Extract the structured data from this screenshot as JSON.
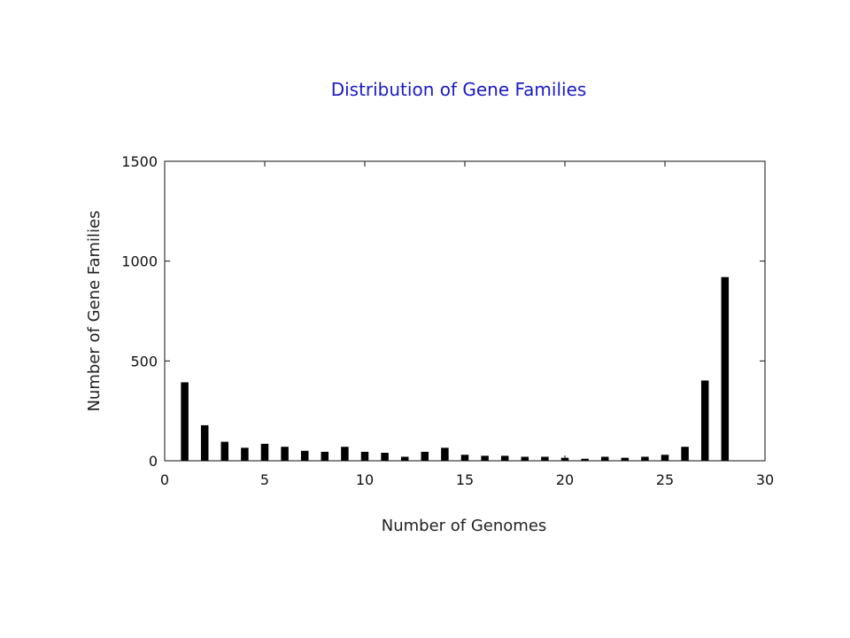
{
  "chart_data": {
    "type": "bar",
    "title": "Distribution of Gene Families",
    "xlabel": "Number of Genomes",
    "ylabel": "Number of Gene Families",
    "xlim": [
      0,
      30
    ],
    "ylim": [
      0,
      1500
    ],
    "xticks": [
      0,
      5,
      10,
      15,
      20,
      25,
      30
    ],
    "yticks": [
      0,
      500,
      1000,
      1500
    ],
    "grid": false,
    "legend": "none",
    "bar_color": "#000000",
    "title_color": "#1a1acc",
    "x": [
      1,
      2,
      3,
      4,
      5,
      6,
      7,
      8,
      9,
      10,
      11,
      12,
      13,
      14,
      15,
      16,
      17,
      18,
      19,
      20,
      21,
      22,
      23,
      24,
      25,
      26,
      27,
      28
    ],
    "values": [
      393,
      178,
      95,
      65,
      85,
      70,
      50,
      45,
      70,
      45,
      40,
      20,
      45,
      65,
      30,
      25,
      25,
      20,
      20,
      15,
      10,
      20,
      15,
      20,
      30,
      70,
      402,
      920
    ]
  }
}
